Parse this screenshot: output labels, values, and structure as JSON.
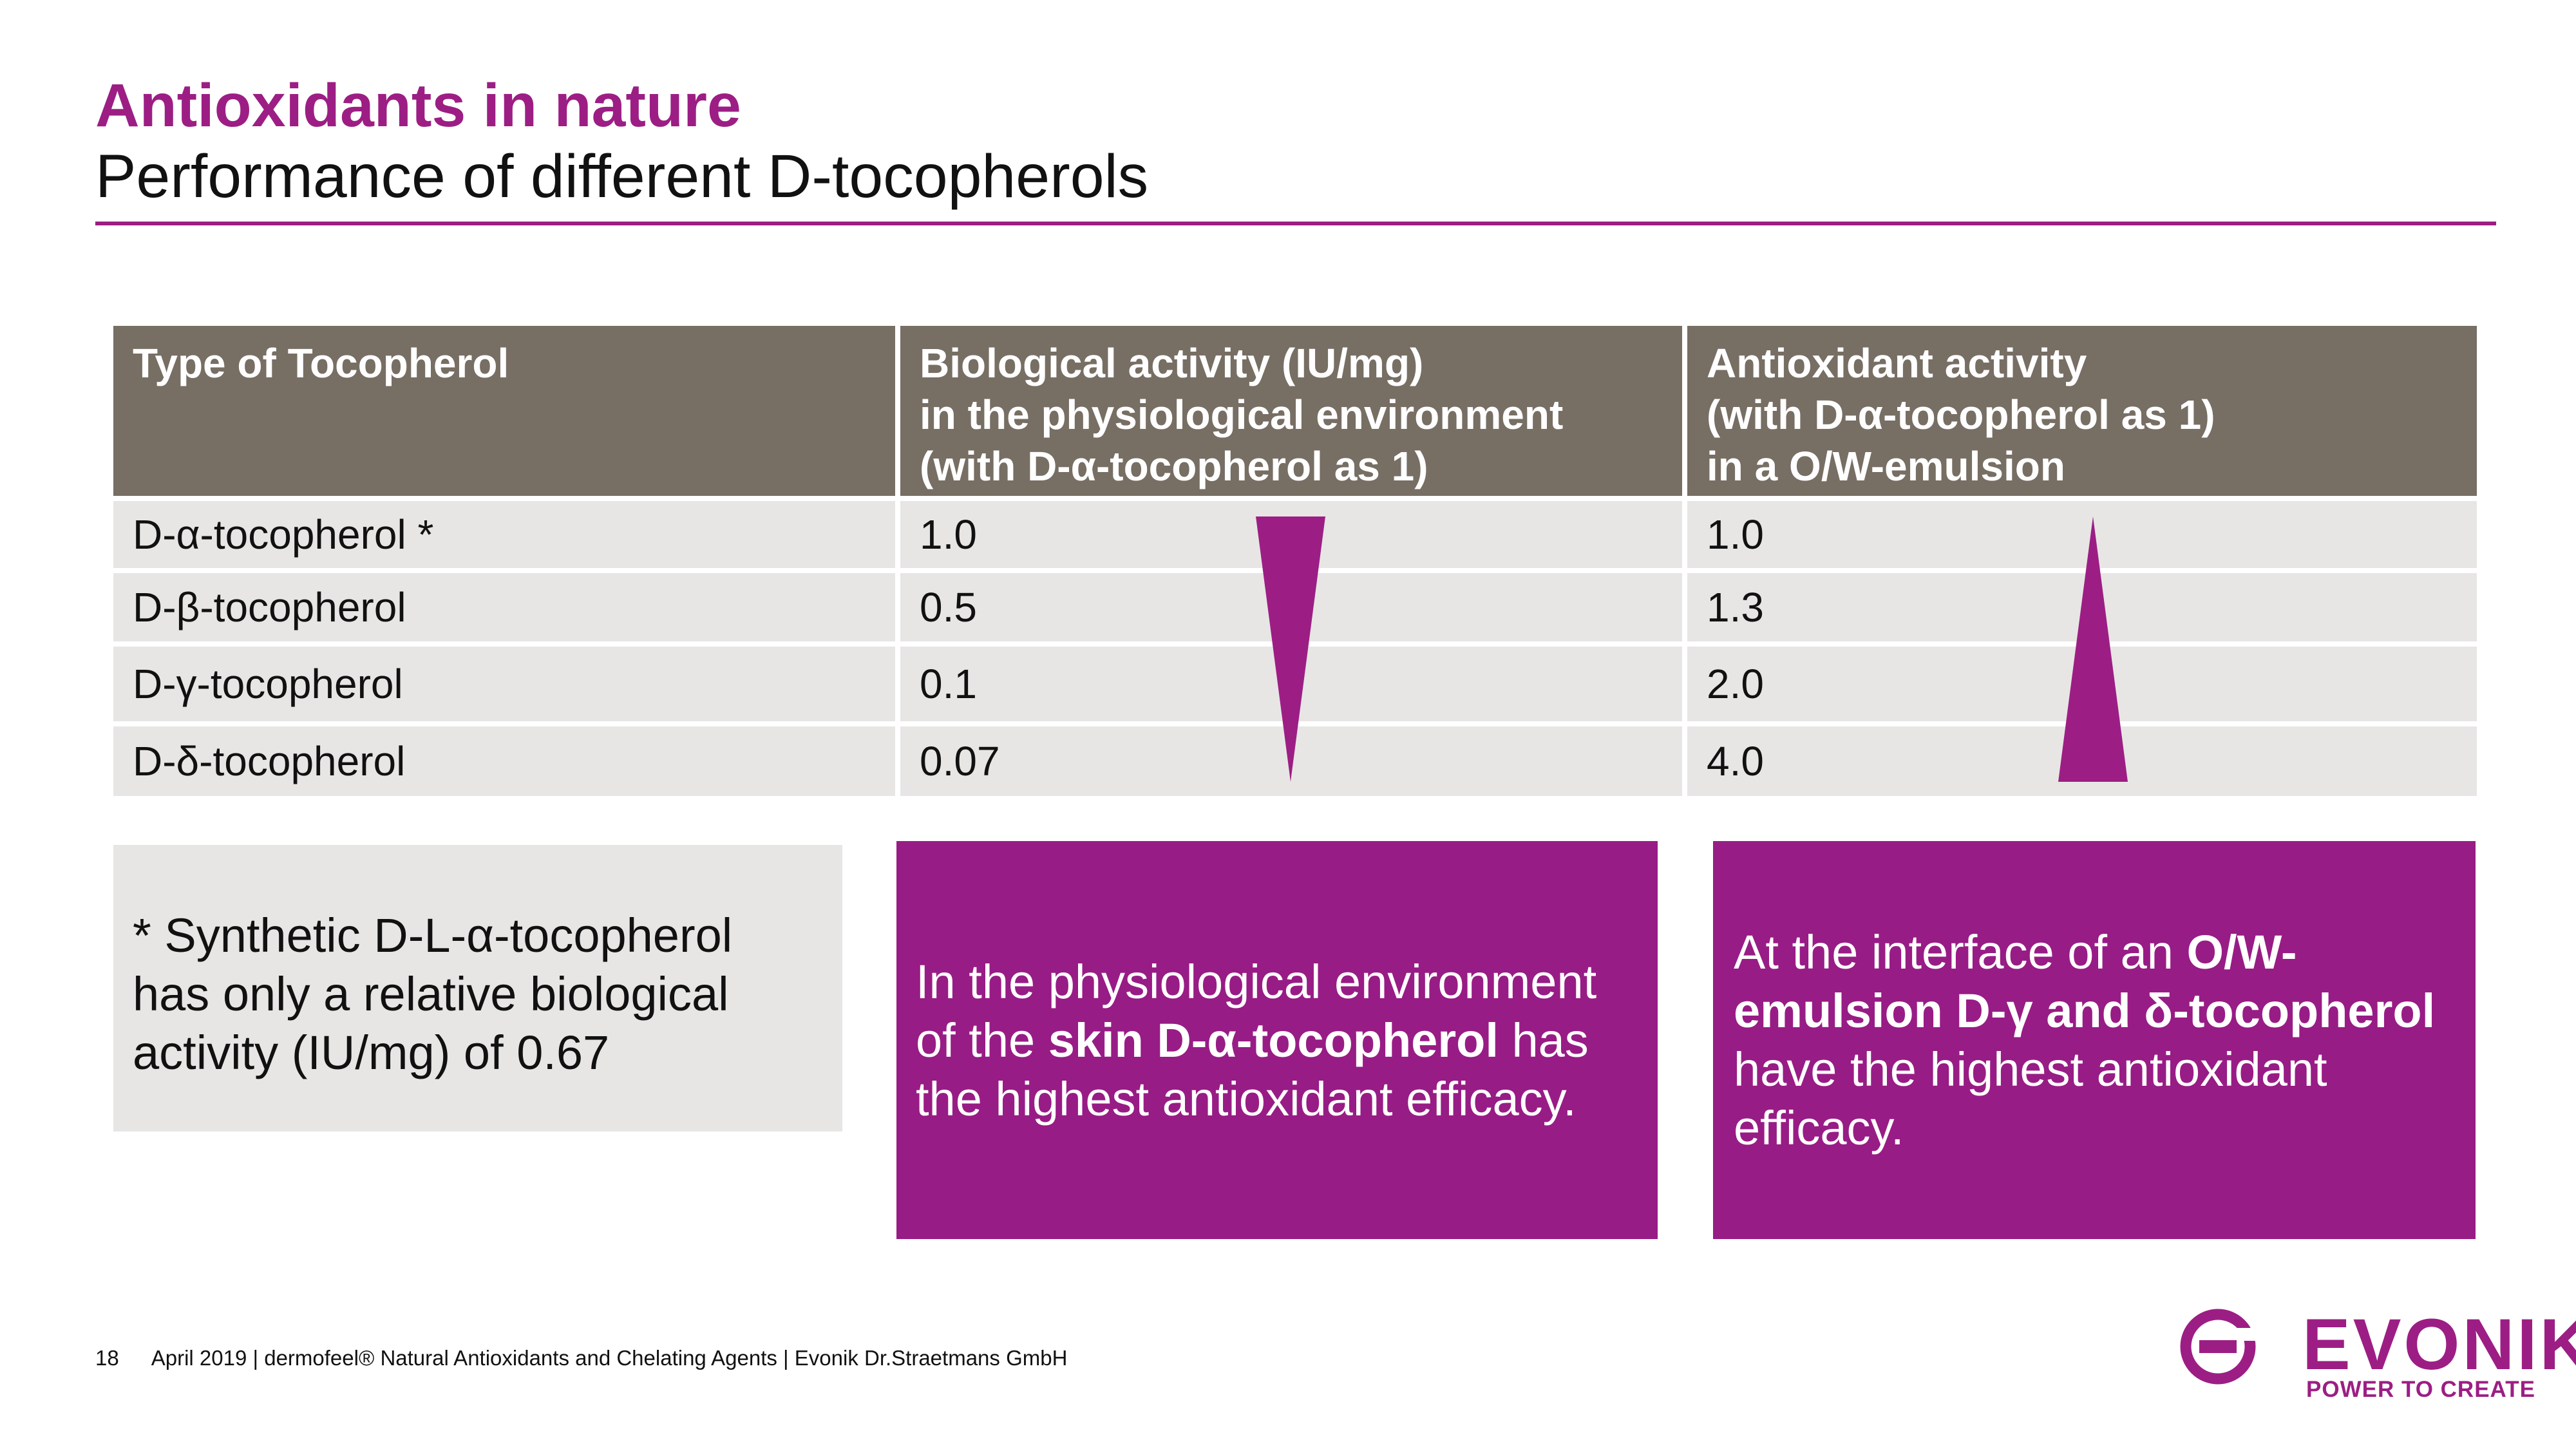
{
  "header": {
    "title": "Antioxidants in nature",
    "subtitle": "Performance of different D-tocopherols"
  },
  "table": {
    "columns": [
      {
        "lines": [
          "Type of Tocopherol"
        ]
      },
      {
        "lines": [
          "Biological activity (IU/mg)",
          "in the physiological environment",
          "(with D-α-tocopherol as 1)"
        ]
      },
      {
        "lines": [
          "Antioxidant activity",
          "(with D-α-tocopherol as 1)",
          "in a O/W-emulsion"
        ]
      }
    ],
    "rows": [
      {
        "type": "D-α-tocopherol *",
        "biological": "1.0",
        "antioxidant": "1.0"
      },
      {
        "type": "D-β-tocopherol",
        "biological": "0.5",
        "antioxidant": "1.3"
      },
      {
        "type": "D-γ-tocopherol",
        "biological": "0.1",
        "antioxidant": "2.0"
      },
      {
        "type": "D-δ-tocopherol",
        "biological": "0.07",
        "antioxidant": "4.0"
      }
    ]
  },
  "note": {
    "lines": [
      "* Synthetic D-L-α-tocopherol",
      "has only a relative biological",
      "activity (IU/mg) of 0.67"
    ]
  },
  "box_skin": {
    "line1": "In the physiological environment",
    "line2_pre": "of the ",
    "line2_bold": "skin D-α-tocopherol",
    "line2_post": " has",
    "line3": "the highest antioxidant efficacy."
  },
  "box_emulsion": {
    "line1_pre": "At the interface of an ",
    "line1_bold": "O/W-",
    "line2_bold": "emulsion D-γ and δ-tocopherol",
    "line3": "have the highest antioxidant",
    "line4": "efficacy."
  },
  "footer": {
    "page": "18",
    "text": "April 2019  | dermofeel® Natural Antioxidants and Chelating Agents  |  Evonik Dr.Straetmans GmbH"
  },
  "logo": {
    "wordmark": "EVONIK",
    "tagline": "POWER TO CREATE"
  },
  "colors": {
    "brand_purple": "#9c1e84",
    "header_gray": "#776e64",
    "cell_gray": "#e7e6e4"
  }
}
